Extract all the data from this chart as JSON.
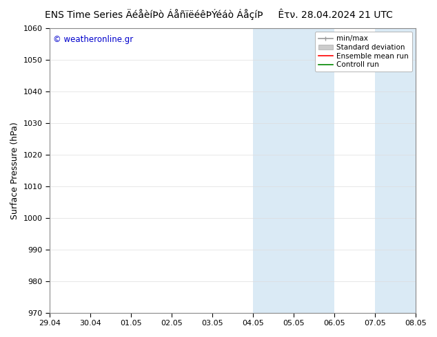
{
  "title_left": "ENS Time Series ÄéåèíÞò ÁåñïëéêÞÝéáò ÁåçíÞ",
  "title_left_raw": "ENS Time Series ÄéåèíÞò ÁåñïëéêÞÝéáò ÁåçíÞ",
  "title_right": "Êτν. 28.04.2024 21 UTC",
  "ylabel": "Surface Pressure (hPa)",
  "ylim": [
    970,
    1060
  ],
  "yticks": [
    970,
    980,
    990,
    1000,
    1010,
    1020,
    1030,
    1040,
    1050,
    1060
  ],
  "xtick_labels": [
    "29.04",
    "30.04",
    "01.05",
    "02.05",
    "03.05",
    "04.05",
    "05.05",
    "06.05",
    "07.05",
    "08.05"
  ],
  "watermark": "© weatheronline.gr",
  "shaded_regions": [
    {
      "xstart": 5,
      "xend": 6,
      "color": "#daeaf5"
    },
    {
      "xstart": 6,
      "xend": 7,
      "color": "#daeaf5"
    },
    {
      "xstart": 8,
      "xend": 10,
      "color": "#daeaf5"
    }
  ],
  "legend_entries": [
    {
      "label": "min/max",
      "color": "#999999",
      "lw": 1.2
    },
    {
      "label": "Standard deviation",
      "color": "#cccccc",
      "lw": 6
    },
    {
      "label": "Ensemble mean run",
      "color": "#ff0000",
      "lw": 1.2
    },
    {
      "label": "Controll run",
      "color": "#008800",
      "lw": 1.2
    }
  ],
  "bg_color": "#ffffff",
  "plot_bg_color": "#ffffff",
  "title_fontsize": 10,
  "axis_fontsize": 9,
  "tick_fontsize": 8,
  "watermark_color": "#0000cc",
  "grid_color": "#dddddd",
  "spine_color": "#888888"
}
